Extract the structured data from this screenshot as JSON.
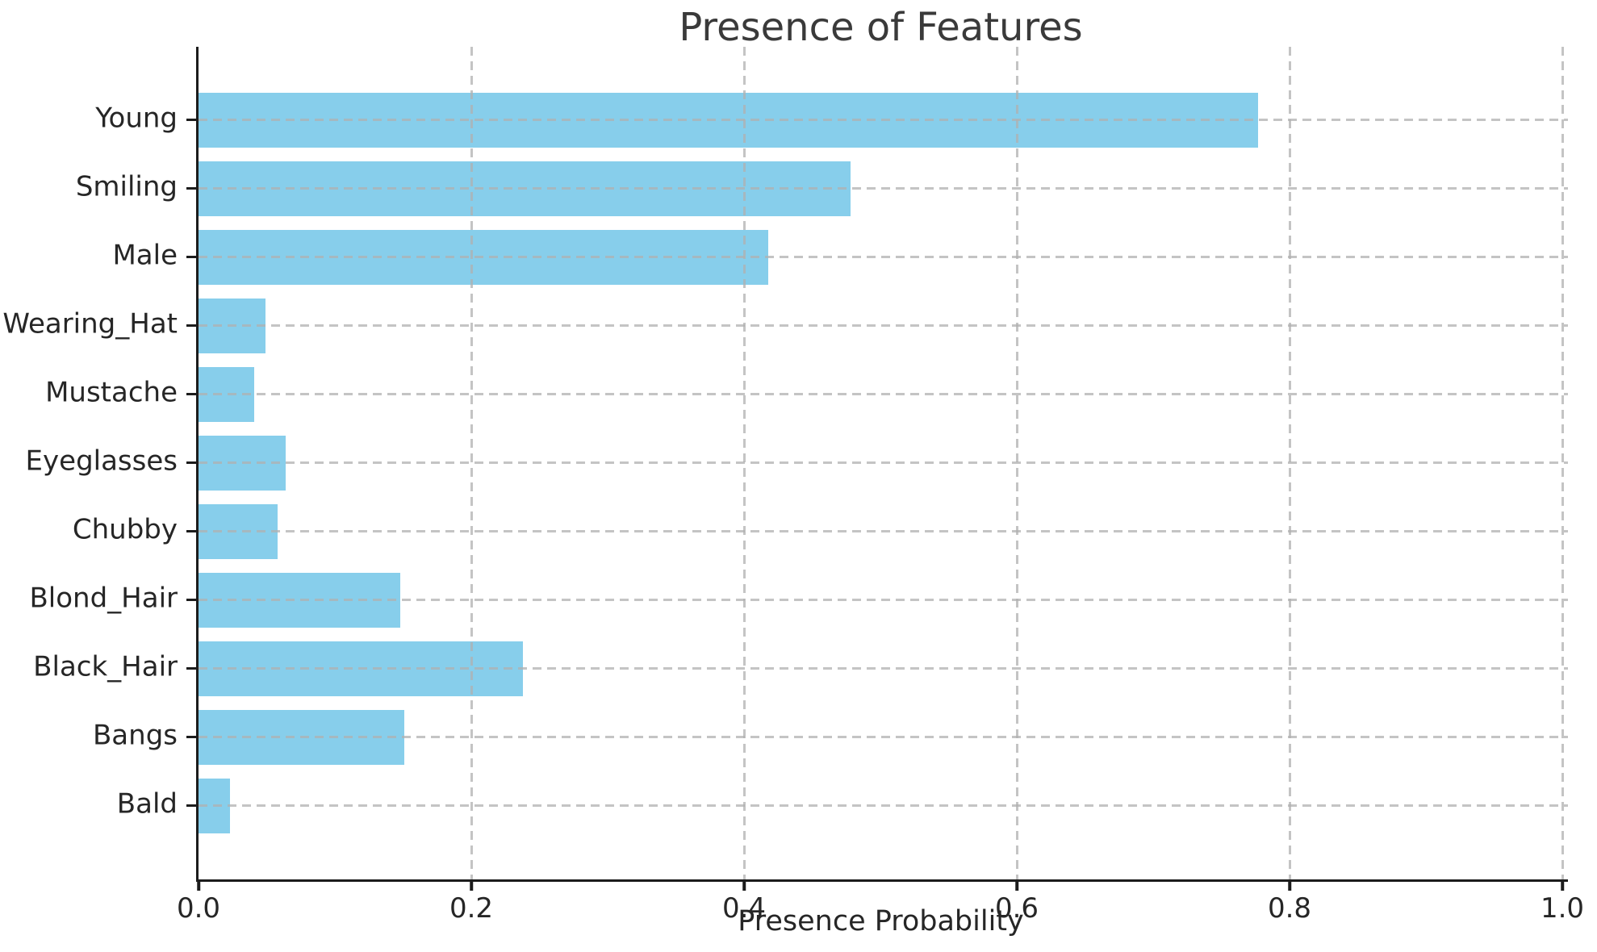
{
  "figure": {
    "title": "Presence of Features",
    "xlabel": "Presence Probability"
  },
  "chart_data": {
    "type": "bar",
    "orientation": "horizontal",
    "title": "Presence of Features",
    "xlabel": "Presence Probability",
    "ylabel": "",
    "categories": [
      "Young",
      "Smiling",
      "Male",
      "Wearing_Hat",
      "Mustache",
      "Eyeglasses",
      "Chubby",
      "Blond_Hair",
      "Black_Hair",
      "Bangs",
      "Bald"
    ],
    "values": [
      0.777,
      0.478,
      0.418,
      0.049,
      0.041,
      0.064,
      0.058,
      0.148,
      0.238,
      0.151,
      0.023
    ],
    "xlim": [
      0.0,
      1.0
    ],
    "xticks": [
      0.0,
      0.2,
      0.4,
      0.6,
      0.8,
      1.0
    ],
    "xtick_labels": [
      "0.0",
      "0.2",
      "0.4",
      "0.6",
      "0.8",
      "1.0"
    ],
    "grid": "both-dashed",
    "grid_above_bars": true,
    "legend": "none",
    "bar_color": "#87CEEB"
  },
  "style": {
    "bar_color": "#87CEEB",
    "grid_color": "#b0b0b0",
    "spine_color": "#1c1c1c",
    "tick_text_color": "#262626",
    "title_color": "#3a3a3a",
    "background_color": "#ffffff"
  }
}
